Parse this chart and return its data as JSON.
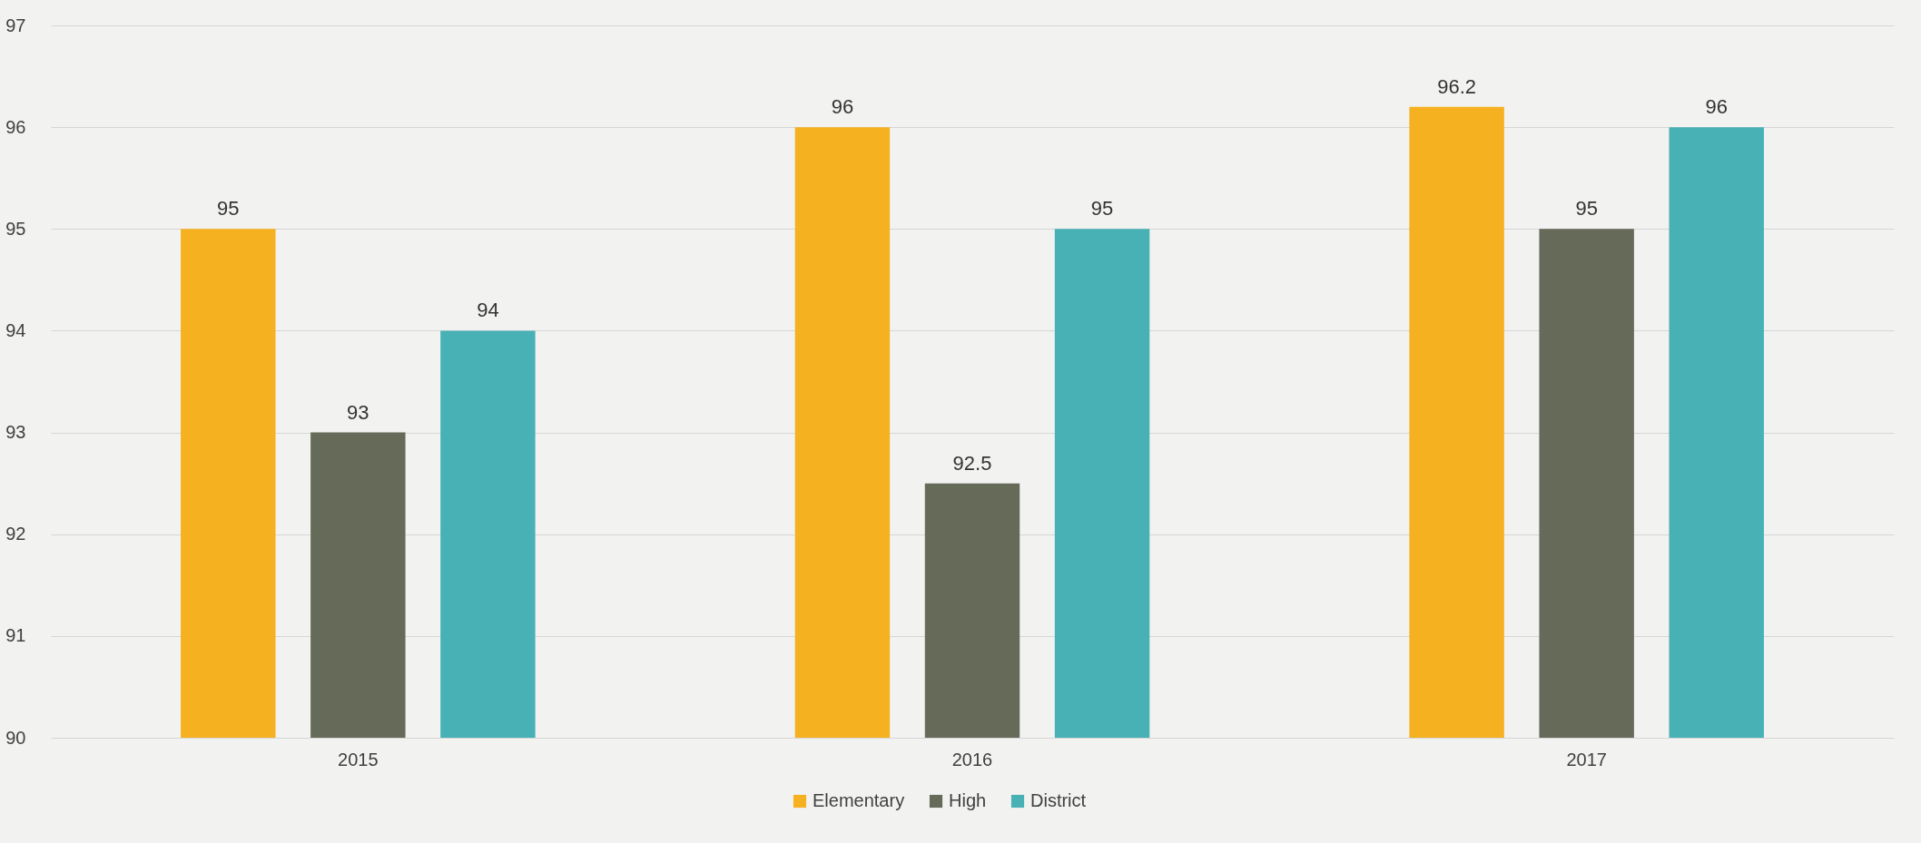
{
  "chart_data": {
    "type": "bar",
    "categories": [
      "2015",
      "2016",
      "2017"
    ],
    "series": [
      {
        "name": "Elementary",
        "color": "#f6b120",
        "values": [
          95,
          96,
          96.2
        ]
      },
      {
        "name": "High",
        "color": "#666a58",
        "values": [
          93,
          92.5,
          95
        ]
      },
      {
        "name": "District",
        "color": "#48b1b5",
        "values": [
          94,
          95,
          96
        ]
      }
    ],
    "ylim": [
      90,
      97
    ],
    "yticks": [
      90,
      91,
      92,
      93,
      94,
      95,
      96,
      97
    ],
    "grid": "y",
    "legend": "bottom",
    "data_labels": true
  }
}
